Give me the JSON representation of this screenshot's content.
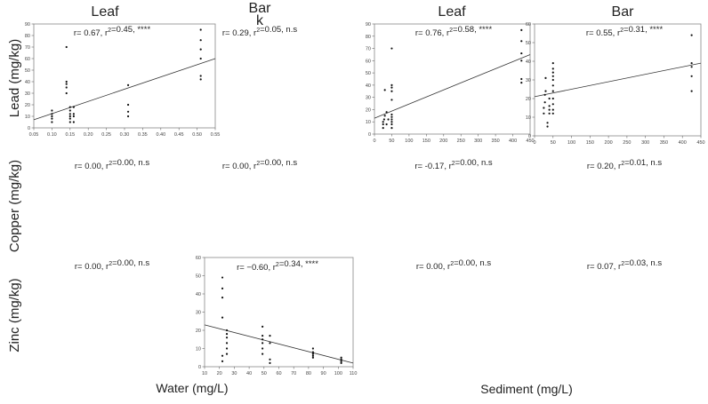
{
  "column_headers": [
    "Leaf",
    "Bar\nk",
    "Leaf",
    "Bar"
  ],
  "row_labels": [
    "Lead (mg/kg)",
    "Copper (mg/kg)",
    "Zinc (mg/kg)"
  ],
  "footer_labels": [
    "Water (mg/L)",
    "Sediment (mg/L)"
  ],
  "stats": [
    [
      "r= 0.67, r²=0.45, ****",
      "r= 0.29, r²=0.05, n.s",
      "r= 0.76, r²=0.58, ****",
      "r= 0.55, r²=0.31, ****"
    ],
    [
      "r= 0.00, r²=0.00, n.s",
      "r= 0.00, r²=0.00, n.s",
      "r= -0.17, r²=0.00, n.s",
      "r= 0.20, r²=0.01, n.s"
    ],
    [
      "r= 0.00, r²=0.00, n.s",
      "r= −0.60, r²=0.34, ****",
      "r= 0.00, r²=0.00, n.s",
      "r= 0.07, r²=0.03, n.s"
    ]
  ],
  "chart_data": [
    {
      "type": "scatter",
      "row": 0,
      "col": 0,
      "xlim": [
        0.05,
        0.55
      ],
      "ylim": [
        0,
        90
      ],
      "xticks": [
        "0.05",
        "0.10",
        "0.15",
        "0.20",
        "0.25",
        "0.30",
        "0.35",
        "0.40",
        "0.45",
        "0.50",
        "0.55"
      ],
      "yticks": [
        "0",
        "10",
        "20",
        "30",
        "40",
        "50",
        "60",
        "70",
        "80",
        "90"
      ],
      "points": [
        [
          0.1,
          5
        ],
        [
          0.1,
          8
        ],
        [
          0.1,
          10
        ],
        [
          0.1,
          12
        ],
        [
          0.1,
          15
        ],
        [
          0.14,
          30
        ],
        [
          0.14,
          35
        ],
        [
          0.14,
          38
        ],
        [
          0.14,
          40
        ],
        [
          0.14,
          70
        ],
        [
          0.15,
          5
        ],
        [
          0.15,
          8
        ],
        [
          0.15,
          10
        ],
        [
          0.15,
          12
        ],
        [
          0.15,
          15
        ],
        [
          0.15,
          18
        ],
        [
          0.16,
          5
        ],
        [
          0.16,
          10
        ],
        [
          0.16,
          12
        ],
        [
          0.16,
          18
        ],
        [
          0.31,
          10
        ],
        [
          0.31,
          14
        ],
        [
          0.31,
          20
        ],
        [
          0.31,
          37
        ],
        [
          0.51,
          42
        ],
        [
          0.51,
          45
        ],
        [
          0.51,
          60
        ],
        [
          0.51,
          68
        ],
        [
          0.51,
          76
        ],
        [
          0.51,
          85
        ]
      ],
      "trendline": [
        [
          0.05,
          7
        ],
        [
          0.55,
          60
        ]
      ]
    },
    {
      "type": "scatter",
      "row": 0,
      "col": 2,
      "xlim": [
        0,
        450
      ],
      "ylim": [
        0,
        90
      ],
      "xticks": [
        "0",
        "50",
        "100",
        "150",
        "200",
        "250",
        "300",
        "350",
        "400",
        "450"
      ],
      "yticks": [
        "0",
        "10",
        "20",
        "30",
        "40",
        "50",
        "60",
        "70",
        "80",
        "90"
      ],
      "points": [
        [
          25,
          5
        ],
        [
          25,
          8
        ],
        [
          25,
          10
        ],
        [
          28,
          12
        ],
        [
          30,
          15
        ],
        [
          30,
          36
        ],
        [
          35,
          18
        ],
        [
          35,
          8
        ],
        [
          40,
          12
        ],
        [
          50,
          5
        ],
        [
          50,
          8
        ],
        [
          50,
          10
        ],
        [
          50,
          12
        ],
        [
          50,
          14
        ],
        [
          50,
          16
        ],
        [
          50,
          28
        ],
        [
          50,
          35
        ],
        [
          50,
          38
        ],
        [
          50,
          40
        ],
        [
          50,
          70
        ],
        [
          425,
          42
        ],
        [
          425,
          45
        ],
        [
          425,
          60
        ],
        [
          425,
          66
        ],
        [
          425,
          76
        ],
        [
          425,
          85
        ]
      ],
      "trendline": [
        [
          0,
          13
        ],
        [
          450,
          65
        ]
      ]
    },
    {
      "type": "scatter",
      "row": 0,
      "col": 3,
      "xlim": [
        0,
        450
      ],
      "ylim": [
        0,
        60
      ],
      "xticks": [
        "0",
        "50",
        "100",
        "150",
        "200",
        "250",
        "300",
        "350",
        "400",
        "450"
      ],
      "yticks": [
        "0",
        "10",
        "20",
        "30",
        "40",
        "50",
        "60"
      ],
      "points": [
        [
          25,
          12
        ],
        [
          25,
          15
        ],
        [
          28,
          18
        ],
        [
          28,
          22
        ],
        [
          30,
          24
        ],
        [
          30,
          31
        ],
        [
          35,
          5
        ],
        [
          35,
          7
        ],
        [
          40,
          12
        ],
        [
          40,
          14
        ],
        [
          40,
          16
        ],
        [
          40,
          20
        ],
        [
          50,
          12
        ],
        [
          50,
          14
        ],
        [
          50,
          17
        ],
        [
          50,
          20
        ],
        [
          50,
          24
        ],
        [
          50,
          27
        ],
        [
          50,
          30
        ],
        [
          50,
          32
        ],
        [
          50,
          34
        ],
        [
          50,
          36
        ],
        [
          50,
          39
        ],
        [
          425,
          24
        ],
        [
          425,
          32
        ],
        [
          425,
          37
        ],
        [
          425,
          39
        ],
        [
          425,
          54
        ]
      ],
      "trendline": [
        [
          0,
          21
        ],
        [
          450,
          39
        ]
      ]
    },
    {
      "type": "scatter",
      "row": 2,
      "col": 1,
      "xlim": [
        10,
        110
      ],
      "ylim": [
        0,
        60
      ],
      "xticks": [
        "10",
        "20",
        "30",
        "40",
        "50",
        "60",
        "70",
        "80",
        "90",
        "100",
        "110"
      ],
      "yticks": [
        "0",
        "10",
        "20",
        "30",
        "40",
        "50",
        "60"
      ],
      "points": [
        [
          22,
          3
        ],
        [
          22,
          6
        ],
        [
          22,
          27
        ],
        [
          22,
          38
        ],
        [
          22,
          43
        ],
        [
          22,
          49
        ],
        [
          25,
          7
        ],
        [
          25,
          10
        ],
        [
          25,
          13
        ],
        [
          25,
          16
        ],
        [
          25,
          18
        ],
        [
          25,
          20
        ],
        [
          49,
          7
        ],
        [
          49,
          10
        ],
        [
          49,
          13
        ],
        [
          49,
          15
        ],
        [
          49,
          17
        ],
        [
          49,
          22
        ],
        [
          54,
          2
        ],
        [
          54,
          4
        ],
        [
          54,
          13
        ],
        [
          54,
          17
        ],
        [
          83,
          5
        ],
        [
          83,
          6
        ],
        [
          83,
          7
        ],
        [
          83,
          8
        ],
        [
          83,
          10
        ],
        [
          102,
          2
        ],
        [
          102,
          3
        ],
        [
          102,
          4
        ],
        [
          102,
          5
        ]
      ],
      "trendline": [
        [
          10,
          23
        ],
        [
          110,
          2
        ]
      ]
    }
  ]
}
